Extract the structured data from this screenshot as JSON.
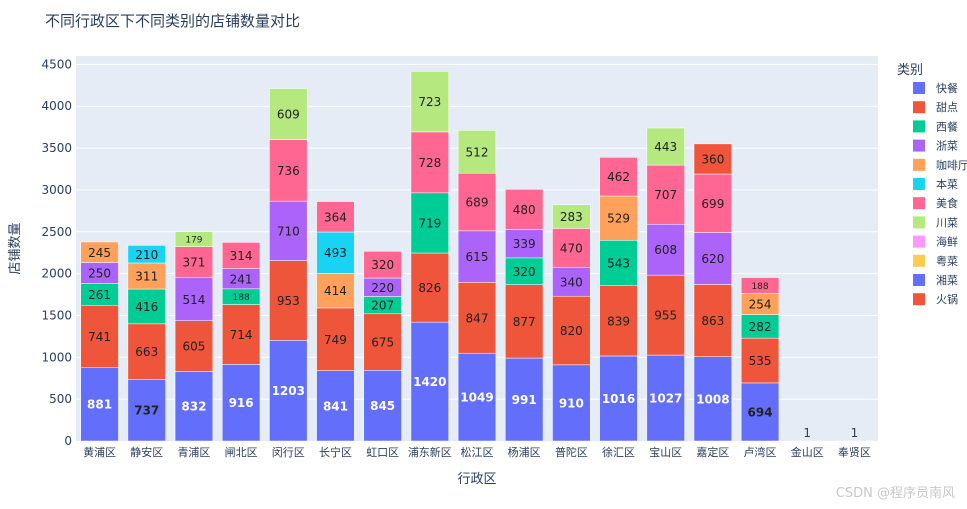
{
  "title": "不同行政区下不同类别的店铺数量对比",
  "watermark": "CSDN @程序员南风",
  "chart_data": {
    "type": "bar",
    "title": "不同行政区下不同类别的店铺数量对比",
    "xlabel": "行政区",
    "ylabel": "店铺数量",
    "ylim": [
      0,
      4600
    ],
    "yticks": [
      0,
      500,
      1000,
      1500,
      2000,
      2500,
      3000,
      3500,
      4000,
      4500
    ],
    "grid": true,
    "legend_title": "类别",
    "legend_position": "right",
    "categories": [
      "黄浦区",
      "静安区",
      "青浦区",
      "闸北区",
      "闵行区",
      "长宁区",
      "虹口区",
      "浦东新区",
      "松江区",
      "杨浦区",
      "普陀区",
      "徐汇区",
      "宝山区",
      "嘉定区",
      "卢湾区",
      "金山区",
      "奉贤区"
    ],
    "series": [
      {
        "name": "快餐",
        "color": "#636efa",
        "values": [
          881,
          737,
          832,
          916,
          1203,
          841,
          845,
          1420,
          1049,
          991,
          910,
          1016,
          1027,
          1008,
          694,
          1,
          1
        ]
      },
      {
        "name": "甜点",
        "color": "#ef553b",
        "values": [
          741,
          663,
          605,
          714,
          953,
          749,
          675,
          826,
          847,
          877,
          820,
          839,
          955,
          863,
          535,
          0,
          0
        ]
      },
      {
        "name": "西餐",
        "color": "#00cc96",
        "values": [
          261,
          416,
          0,
          188,
          0,
          0,
          207,
          719,
          0,
          320,
          0,
          543,
          0,
          0,
          282,
          0,
          0
        ]
      },
      {
        "name": "浙菜",
        "color": "#ab63fa",
        "values": [
          250,
          0,
          514,
          241,
          710,
          0,
          220,
          0,
          615,
          339,
          340,
          0,
          608,
          620,
          0,
          0,
          0
        ]
      },
      {
        "name": "咖啡厅",
        "color": "#ffa15a",
        "values": [
          245,
          311,
          0,
          0,
          0,
          414,
          0,
          0,
          0,
          0,
          0,
          529,
          0,
          0,
          254,
          0,
          0
        ]
      },
      {
        "name": "本菜",
        "color": "#19d3f3",
        "values": [
          0,
          210,
          0,
          0,
          0,
          493,
          0,
          0,
          0,
          0,
          0,
          0,
          0,
          0,
          0,
          0,
          0
        ]
      },
      {
        "name": "美食",
        "color": "#ff6692",
        "values": [
          0,
          0,
          371,
          314,
          736,
          364,
          320,
          728,
          689,
          480,
          470,
          462,
          707,
          699,
          188,
          0,
          0
        ]
      },
      {
        "name": "川菜",
        "color": "#b6e880",
        "values": [
          0,
          0,
          179,
          0,
          609,
          0,
          0,
          723,
          512,
          0,
          283,
          0,
          443,
          0,
          0,
          0,
          0
        ]
      },
      {
        "name": "海鲜",
        "color": "#ff97ff",
        "values": [
          0,
          0,
          0,
          0,
          0,
          0,
          0,
          0,
          0,
          0,
          0,
          0,
          0,
          0,
          0,
          0,
          0
        ]
      },
      {
        "name": "粤菜",
        "color": "#fecb52",
        "values": [
          0,
          0,
          0,
          0,
          0,
          0,
          0,
          0,
          0,
          0,
          0,
          0,
          0,
          0,
          0,
          0,
          0
        ]
      },
      {
        "name": "湘菜",
        "color": "#636efa",
        "values": [
          0,
          0,
          0,
          0,
          0,
          0,
          0,
          0,
          0,
          0,
          0,
          0,
          0,
          0,
          0,
          0,
          0
        ]
      },
      {
        "name": "火锅",
        "color": "#ef553b",
        "values": [
          0,
          0,
          0,
          0,
          0,
          0,
          0,
          0,
          0,
          0,
          0,
          0,
          0,
          360,
          0,
          0,
          0
        ]
      }
    ]
  }
}
